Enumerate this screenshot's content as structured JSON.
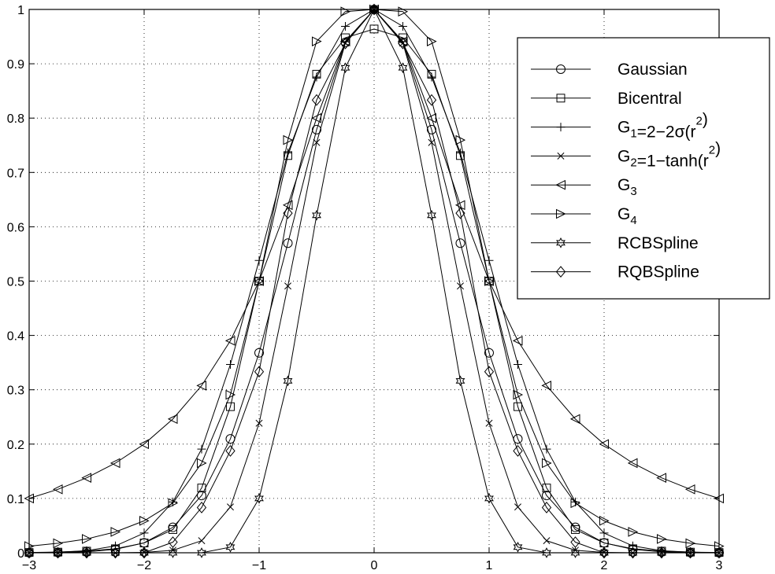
{
  "chart_data": {
    "type": "line",
    "title": "",
    "xlabel": "",
    "ylabel": "",
    "xlim": [
      -3,
      3
    ],
    "ylim": [
      0,
      1
    ],
    "x_ticks": [
      -3,
      -2,
      -1,
      0,
      1,
      2,
      3
    ],
    "y_ticks": [
      0,
      0.1,
      0.2,
      0.3,
      0.4,
      0.5,
      0.6,
      0.7,
      0.8,
      0.9,
      1
    ],
    "x_tick_labels": [
      "−3",
      "−2",
      "−1",
      "0",
      "1",
      "2",
      "3"
    ],
    "y_tick_labels": [
      "0",
      "0.1",
      "0.2",
      "0.3",
      "0.4",
      "0.5",
      "0.6",
      "0.7",
      "0.8",
      "0.9",
      "1"
    ],
    "grid": "dotted",
    "legend_placement": "top-right",
    "x": [
      -3,
      -2.75,
      -2.5,
      -2.25,
      -2,
      -1.75,
      -1.5,
      -1.25,
      -1,
      -0.75,
      -0.5,
      -0.25,
      0,
      0.25,
      0.5,
      0.75,
      1,
      1.25,
      1.5,
      1.75,
      2,
      2.25,
      2.5,
      2.75,
      3
    ],
    "series": [
      {
        "name": "Gaussian",
        "marker": "circle",
        "legend_parts": [
          {
            "t": "Gaussian",
            "k": "n"
          }
        ],
        "values": [
          0.0001,
          0.0005,
          0.0019,
          0.0063,
          0.0183,
          0.0468,
          0.1054,
          0.2096,
          0.3679,
          0.5698,
          0.7788,
          0.9394,
          1,
          0.9394,
          0.7788,
          0.5698,
          0.3679,
          0.2096,
          0.1054,
          0.0468,
          0.0183,
          0.0063,
          0.0019,
          0.0005,
          0.0001
        ]
      },
      {
        "name": "Bicentral",
        "marker": "square",
        "legend_parts": [
          {
            "t": "Bicentral",
            "k": "n"
          }
        ],
        "values": [
          0.0005,
          0.0012,
          0.003,
          0.0074,
          0.018,
          0.0427,
          0.1192,
          0.2689,
          0.5,
          0.7311,
          0.8808,
          0.9479,
          0.964,
          0.9479,
          0.8808,
          0.7311,
          0.5,
          0.2689,
          0.1192,
          0.0427,
          0.018,
          0.0074,
          0.003,
          0.0012,
          0.0005
        ]
      },
      {
        "name": "G1=2−2σ(r2)",
        "marker": "plus",
        "legend_parts": [
          {
            "t": "G",
            "k": "n"
          },
          {
            "t": "1",
            "k": "sub"
          },
          {
            "t": "=2−2σ(r",
            "k": "n"
          },
          {
            "t": "2",
            "k": "sup"
          },
          {
            "t": ")",
            "k": "n"
          }
        ],
        "values": [
          0.0002,
          0.0011,
          0.0038,
          0.0126,
          0.0363,
          0.0935,
          0.1909,
          0.3466,
          0.5379,
          0.7361,
          0.8756,
          0.9688,
          1,
          0.9688,
          0.8756,
          0.7361,
          0.5379,
          0.3466,
          0.1909,
          0.0935,
          0.0363,
          0.0126,
          0.0038,
          0.0011,
          0.0002
        ]
      },
      {
        "name": "G2=1−tanh(r2)",
        "marker": "x",
        "legend_parts": [
          {
            "t": "G",
            "k": "n"
          },
          {
            "t": "2",
            "k": "sub"
          },
          {
            "t": "=1−tanh(r",
            "k": "n"
          },
          {
            "t": "2",
            "k": "sup"
          },
          {
            "t": ")",
            "k": "n"
          }
        ],
        "values": [
          0.0,
          0.0,
          0.0,
          0.0,
          0.0007,
          0.0046,
          0.0222,
          0.0843,
          0.2384,
          0.4909,
          0.7551,
          0.9379,
          1,
          0.9379,
          0.7551,
          0.4909,
          0.2384,
          0.0843,
          0.0222,
          0.0046,
          0.0007,
          0.0,
          0.0,
          0.0,
          0.0
        ]
      },
      {
        "name": "G3",
        "marker": "triangle-left",
        "legend_parts": [
          {
            "t": "G",
            "k": "n"
          },
          {
            "t": "3",
            "k": "sub"
          }
        ],
        "values": [
          0.1,
          0.1168,
          0.1379,
          0.165,
          0.2,
          0.2462,
          0.3077,
          0.3902,
          0.5,
          0.64,
          0.8,
          0.9412,
          1,
          0.9412,
          0.8,
          0.64,
          0.5,
          0.3902,
          0.3077,
          0.2462,
          0.2,
          0.165,
          0.1379,
          0.1168,
          0.1
        ]
      },
      {
        "name": "G4",
        "marker": "triangle-right",
        "legend_parts": [
          {
            "t": "G",
            "k": "n"
          },
          {
            "t": "4",
            "k": "sub"
          }
        ],
        "values": [
          0.0122,
          0.0175,
          0.0254,
          0.0384,
          0.0588,
          0.0914,
          0.165,
          0.2908,
          0.5,
          0.7596,
          0.9412,
          0.9961,
          1,
          0.9961,
          0.9412,
          0.7596,
          0.5,
          0.2908,
          0.165,
          0.0914,
          0.0588,
          0.0384,
          0.0254,
          0.0175,
          0.0122
        ]
      },
      {
        "name": "RCBSpline",
        "marker": "star",
        "legend_parts": [
          {
            "t": "RCBSpline",
            "k": "n"
          }
        ],
        "values": [
          0,
          0,
          0,
          0,
          0,
          0,
          0.0,
          0.0104,
          0.1,
          0.3164,
          0.6211,
          0.8926,
          1,
          0.8926,
          0.6211,
          0.3164,
          0.1,
          0.0104,
          0.0,
          0,
          0,
          0,
          0,
          0,
          0
        ]
      },
      {
        "name": "RQBSpline",
        "marker": "diamond",
        "legend_parts": [
          {
            "t": "RQBSpline",
            "k": "n"
          }
        ],
        "values": [
          0,
          0,
          0,
          0,
          0.0,
          0.0195,
          0.0833,
          0.1875,
          0.3333,
          0.625,
          0.8333,
          0.9375,
          1,
          0.9375,
          0.8333,
          0.625,
          0.3333,
          0.1875,
          0.0833,
          0.0195,
          0.0,
          0,
          0,
          0,
          0
        ]
      }
    ]
  }
}
